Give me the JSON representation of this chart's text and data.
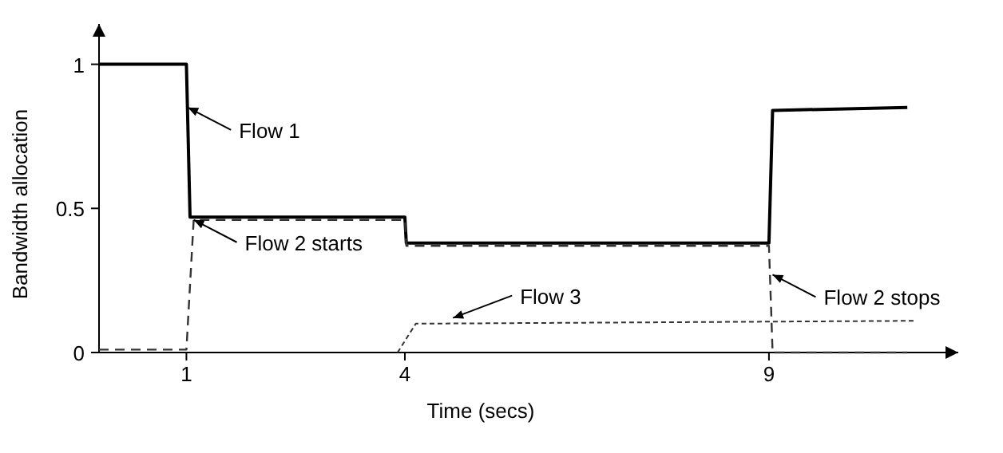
{
  "chart_data": {
    "type": "step",
    "xlabel": "Time (secs)",
    "ylabel": "Bandwidth allocation",
    "xlim": [
      -0.2,
      11.6
    ],
    "ylim": [
      0,
      1.14
    ],
    "xticks": [
      1,
      4,
      9
    ],
    "yticks": [
      0,
      0.5,
      1
    ],
    "grid": false,
    "series": [
      {
        "color": "#000000",
        "line_style": "solid",
        "x": [
          -0.2,
          1,
          1.05,
          4,
          4.02,
          9,
          9.05,
          10.9
        ],
        "values": [
          1,
          1,
          0.47,
          0.47,
          0.38,
          0.38,
          0.84,
          0.85
        ]
      },
      {
        "color": "#333333",
        "line_style": "dashed",
        "x": [
          -0.2,
          1,
          1.1,
          4,
          4.02,
          9,
          9.05,
          10.9
        ],
        "values": [
          0.01,
          0.01,
          0.46,
          0.46,
          0.37,
          0.37,
          0,
          0
        ]
      },
      {
        "color": "#333333",
        "line_style": "dotted",
        "x": [
          3.9,
          4.15,
          11
        ],
        "values": [
          0,
          0.1,
          0.11
        ]
      }
    ],
    "annotations": [
      {
        "text": "Flow 1",
        "x": 1.02,
        "y": 0.85
      },
      {
        "text": "Flow 2 starts",
        "x": 1.1,
        "y": 0.46
      },
      {
        "text": "Flow 3",
        "x": 4.66,
        "y": 0.12
      },
      {
        "text": "Flow 2 stops",
        "x": 9.05,
        "y": 0.27
      }
    ]
  }
}
